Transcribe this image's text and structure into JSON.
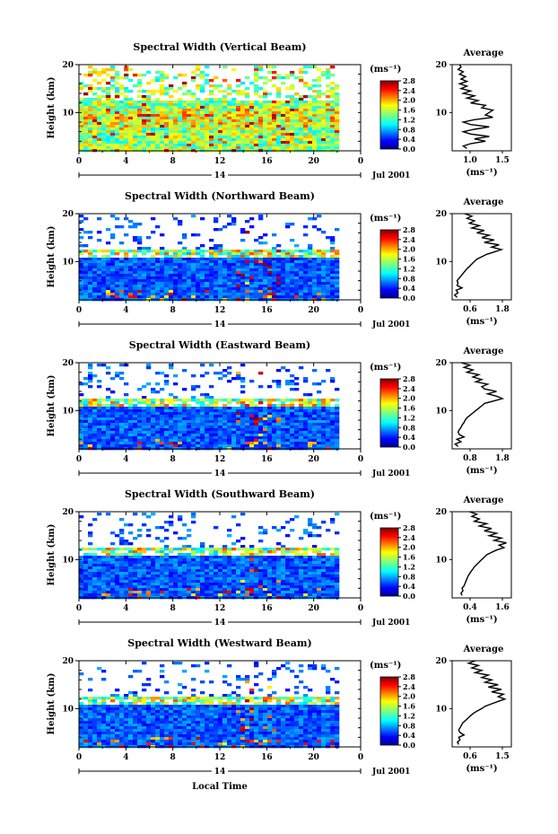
{
  "chart_data": [
    {
      "type": "heatmap",
      "title": "Spectral Width (Vertical Beam)",
      "ylabel": "Height (km)",
      "y_ticks": [
        "10",
        "20"
      ],
      "ylim": [
        2,
        20
      ],
      "x_ticks": [
        "0",
        "4",
        "8",
        "12",
        "16",
        "20",
        "0"
      ],
      "xlim": [
        0,
        24
      ],
      "date_label": "Jul 2001",
      "day_label": "14",
      "colorbar": {
        "unit": "(ms⁻¹)",
        "ticks": [
          "2.8",
          "2.4",
          "2.0",
          "1.6",
          "1.2",
          "0.8",
          "0.4",
          "0.0"
        ],
        "range": [
          0,
          2.8
        ]
      },
      "average": {
        "title": "Average",
        "x_ticks": [
          "1.0",
          "1.5"
        ],
        "xlim": [
          0.8,
          1.6
        ],
        "y_ticks": [
          "10",
          "20"
        ],
        "xlabel": "(ms⁻¹)",
        "profile": [
          [
            1.0,
            2.5
          ],
          [
            0.95,
            3
          ],
          [
            1.05,
            3.5
          ],
          [
            1.25,
            4
          ],
          [
            1.1,
            4.5
          ],
          [
            1.3,
            5
          ],
          [
            1.05,
            5.5
          ],
          [
            0.95,
            6
          ],
          [
            1.1,
            6.5
          ],
          [
            1.3,
            7
          ],
          [
            1.05,
            7.5
          ],
          [
            0.95,
            8
          ],
          [
            1.1,
            8.5
          ],
          [
            1.35,
            9
          ],
          [
            1.25,
            9.5
          ],
          [
            1.3,
            10
          ],
          [
            1.35,
            10.5
          ],
          [
            1.2,
            11
          ],
          [
            1.25,
            11.5
          ],
          [
            1.05,
            12
          ],
          [
            1.15,
            12.5
          ],
          [
            1.0,
            13
          ],
          [
            1.1,
            13.5
          ],
          [
            0.95,
            14
          ],
          [
            1.05,
            14.5
          ],
          [
            0.92,
            15
          ],
          [
            1.0,
            15.5
          ],
          [
            0.9,
            16
          ],
          [
            1.0,
            16.5
          ],
          [
            0.92,
            17
          ],
          [
            0.98,
            17.5
          ],
          [
            0.9,
            18
          ],
          [
            0.95,
            18.5
          ],
          [
            0.88,
            19
          ],
          [
            0.92,
            19.5
          ],
          [
            0.9,
            20
          ]
        ]
      }
    },
    {
      "type": "heatmap",
      "title": "Spectral Width (Northward Beam)",
      "ylabel": "Height (km)",
      "y_ticks": [
        "10",
        "20"
      ],
      "ylim": [
        2,
        20
      ],
      "x_ticks": [
        "0",
        "4",
        "8",
        "12",
        "16",
        "20",
        "0"
      ],
      "xlim": [
        0,
        24
      ],
      "date_label": "Jul 2001",
      "day_label": "14",
      "colorbar": {
        "unit": "(ms⁻¹)",
        "ticks": [
          "2.8",
          "2.4",
          "2.0",
          "1.6",
          "1.2",
          "0.8",
          "0.4",
          "0.0"
        ],
        "range": [
          0,
          2.8
        ]
      },
      "average": {
        "title": "Average",
        "x_ticks": [
          "0.6",
          "1.8"
        ],
        "xlim": [
          0.6,
          1.8
        ],
        "y_ticks": [
          "10",
          "20"
        ],
        "xlabel": "(ms⁻¹)",
        "profile": [
          [
            0.7,
            2.5
          ],
          [
            0.65,
            3
          ],
          [
            0.72,
            3.5
          ],
          [
            0.68,
            4
          ],
          [
            0.8,
            4.5
          ],
          [
            0.7,
            5
          ],
          [
            0.72,
            5.5
          ],
          [
            0.7,
            6
          ],
          [
            0.74,
            6.5
          ],
          [
            0.78,
            7
          ],
          [
            0.82,
            7.5
          ],
          [
            0.86,
            8
          ],
          [
            0.9,
            8.5
          ],
          [
            0.95,
            9
          ],
          [
            1.0,
            9.5
          ],
          [
            1.05,
            10
          ],
          [
            1.1,
            10.5
          ],
          [
            1.2,
            11
          ],
          [
            1.3,
            11.5
          ],
          [
            1.45,
            12
          ],
          [
            1.6,
            12.5
          ],
          [
            1.4,
            13
          ],
          [
            1.55,
            13.5
          ],
          [
            1.25,
            14
          ],
          [
            1.45,
            14.5
          ],
          [
            1.2,
            15
          ],
          [
            1.35,
            15.5
          ],
          [
            1.1,
            16
          ],
          [
            1.25,
            16.5
          ],
          [
            1.0,
            17
          ],
          [
            1.15,
            17.5
          ],
          [
            0.95,
            18
          ],
          [
            1.05,
            18.5
          ],
          [
            0.9,
            19
          ],
          [
            1.0,
            19.5
          ],
          [
            0.85,
            20
          ]
        ]
      }
    },
    {
      "type": "heatmap",
      "title": "Spectral Width (Eastward Beam)",
      "ylabel": "Height (km)",
      "y_ticks": [
        "10",
        "20"
      ],
      "ylim": [
        2,
        20
      ],
      "x_ticks": [
        "0",
        "4",
        "8",
        "12",
        "16",
        "20",
        "0"
      ],
      "xlim": [
        0,
        24
      ],
      "date_label": "Jul 2001",
      "day_label": "14",
      "colorbar": {
        "unit": "(ms⁻¹)",
        "ticks": [
          "2.8",
          "2.4",
          "2.0",
          "1.6",
          "1.2",
          "0.8",
          "0.4",
          "0.0"
        ],
        "range": [
          0,
          2.8
        ]
      },
      "average": {
        "title": "Average",
        "x_ticks": [
          "0.8",
          "1.8"
        ],
        "xlim": [
          0.8,
          1.8
        ],
        "y_ticks": [
          "10",
          "20"
        ],
        "xlabel": "(ms⁻¹)",
        "profile": [
          [
            0.9,
            2.5
          ],
          [
            0.85,
            3
          ],
          [
            0.95,
            3.5
          ],
          [
            0.88,
            4
          ],
          [
            1.0,
            4.5
          ],
          [
            0.92,
            5
          ],
          [
            0.9,
            5.5
          ],
          [
            0.92,
            6
          ],
          [
            0.95,
            6.5
          ],
          [
            0.97,
            7
          ],
          [
            1.0,
            7.5
          ],
          [
            1.02,
            8
          ],
          [
            1.05,
            8.5
          ],
          [
            1.1,
            9
          ],
          [
            1.15,
            9.5
          ],
          [
            1.2,
            10
          ],
          [
            1.25,
            10.5
          ],
          [
            1.3,
            11
          ],
          [
            1.35,
            11.5
          ],
          [
            1.5,
            12
          ],
          [
            1.65,
            12.5
          ],
          [
            1.55,
            13
          ],
          [
            1.4,
            13.5
          ],
          [
            1.55,
            14
          ],
          [
            1.35,
            14.5
          ],
          [
            1.3,
            15
          ],
          [
            1.4,
            15.5
          ],
          [
            1.2,
            16
          ],
          [
            1.3,
            16.5
          ],
          [
            1.15,
            17
          ],
          [
            1.25,
            17.5
          ],
          [
            1.05,
            18
          ],
          [
            1.15,
            18.5
          ],
          [
            1.0,
            19
          ],
          [
            1.1,
            19.5
          ],
          [
            0.95,
            20
          ]
        ]
      }
    },
    {
      "type": "heatmap",
      "title": "Spectral Width (Southward Beam)",
      "ylabel": "Height (km)",
      "y_ticks": [
        "10",
        "20"
      ],
      "ylim": [
        2,
        20
      ],
      "x_ticks": [
        "0",
        "4",
        "8",
        "12",
        "16",
        "20",
        "0"
      ],
      "xlim": [
        0,
        24
      ],
      "date_label": "Jul 2001",
      "day_label": "14",
      "colorbar": {
        "unit": "(ms⁻¹)",
        "ticks": [
          "2.8",
          "2.4",
          "2.0",
          "1.6",
          "1.2",
          "0.8",
          "0.4",
          "0.0"
        ],
        "range": [
          0,
          2.8
        ]
      },
      "average": {
        "title": "Average",
        "x_ticks": [
          "0.4",
          "1.6"
        ],
        "xlim": [
          0.4,
          1.6
        ],
        "y_ticks": [
          "10",
          "20"
        ],
        "xlabel": "(ms⁻¹)",
        "profile": [
          [
            0.6,
            2.5
          ],
          [
            0.58,
            3
          ],
          [
            0.62,
            3.5
          ],
          [
            0.6,
            4
          ],
          [
            0.64,
            4.5
          ],
          [
            0.66,
            5
          ],
          [
            0.68,
            5.5
          ],
          [
            0.7,
            6
          ],
          [
            0.72,
            6.5
          ],
          [
            0.75,
            7
          ],
          [
            0.78,
            7.5
          ],
          [
            0.82,
            8
          ],
          [
            0.85,
            8.5
          ],
          [
            0.9,
            9
          ],
          [
            0.95,
            9.5
          ],
          [
            1.0,
            10
          ],
          [
            1.05,
            10.5
          ],
          [
            1.1,
            11
          ],
          [
            1.2,
            11.5
          ],
          [
            1.3,
            12
          ],
          [
            1.45,
            12.5
          ],
          [
            1.35,
            13
          ],
          [
            1.5,
            13.5
          ],
          [
            1.25,
            14
          ],
          [
            1.4,
            14.5
          ],
          [
            1.15,
            15
          ],
          [
            1.3,
            15.5
          ],
          [
            1.05,
            16
          ],
          [
            1.2,
            16.5
          ],
          [
            0.95,
            17
          ],
          [
            1.1,
            17.5
          ],
          [
            0.85,
            18
          ],
          [
            0.95,
            18.5
          ],
          [
            0.8,
            19
          ],
          [
            0.9,
            19.5
          ],
          [
            0.75,
            20
          ]
        ]
      }
    },
    {
      "type": "heatmap",
      "title": "Spectral Width (Westward Beam)",
      "ylabel": "Height (km)",
      "y_ticks": [
        "10",
        "20"
      ],
      "ylim": [
        2,
        20
      ],
      "x_ticks": [
        "0",
        "4",
        "8",
        "12",
        "16",
        "20",
        "0"
      ],
      "xlim": [
        0,
        24
      ],
      "date_label": "Jul 2001",
      "day_label": "14",
      "xlabel": "Local Time",
      "colorbar": {
        "unit": "(ms⁻¹)",
        "ticks": [
          "2.8",
          "2.4",
          "2.0",
          "1.6",
          "1.2",
          "0.8",
          "0.4",
          "0.0"
        ],
        "range": [
          0,
          2.8
        ]
      },
      "average": {
        "title": "Average",
        "x_ticks": [
          "0.6",
          "1.5"
        ],
        "xlim": [
          0.6,
          1.5
        ],
        "y_ticks": [
          "10",
          "20"
        ],
        "xlabel": "(ms⁻¹)",
        "profile": [
          [
            0.7,
            2.5
          ],
          [
            0.68,
            3
          ],
          [
            0.72,
            3.5
          ],
          [
            0.7,
            4
          ],
          [
            0.78,
            4.5
          ],
          [
            0.72,
            5
          ],
          [
            0.7,
            5.5
          ],
          [
            0.72,
            6
          ],
          [
            0.74,
            6.5
          ],
          [
            0.76,
            7
          ],
          [
            0.8,
            7.5
          ],
          [
            0.84,
            8
          ],
          [
            0.88,
            8.5
          ],
          [
            0.92,
            9
          ],
          [
            0.98,
            9.5
          ],
          [
            1.05,
            10
          ],
          [
            1.1,
            10.5
          ],
          [
            1.2,
            11
          ],
          [
            1.3,
            11.5
          ],
          [
            1.4,
            12
          ],
          [
            1.3,
            12.5
          ],
          [
            1.38,
            13
          ],
          [
            1.2,
            13.5
          ],
          [
            1.35,
            14
          ],
          [
            1.15,
            14.5
          ],
          [
            1.3,
            15
          ],
          [
            1.1,
            15.5
          ],
          [
            1.2,
            16
          ],
          [
            1.05,
            16.5
          ],
          [
            1.15,
            17
          ],
          [
            0.95,
            17.5
          ],
          [
            1.05,
            18
          ],
          [
            0.9,
            18.5
          ],
          [
            1.0,
            19
          ],
          [
            0.85,
            19.5
          ],
          [
            0.95,
            20
          ]
        ]
      }
    }
  ]
}
